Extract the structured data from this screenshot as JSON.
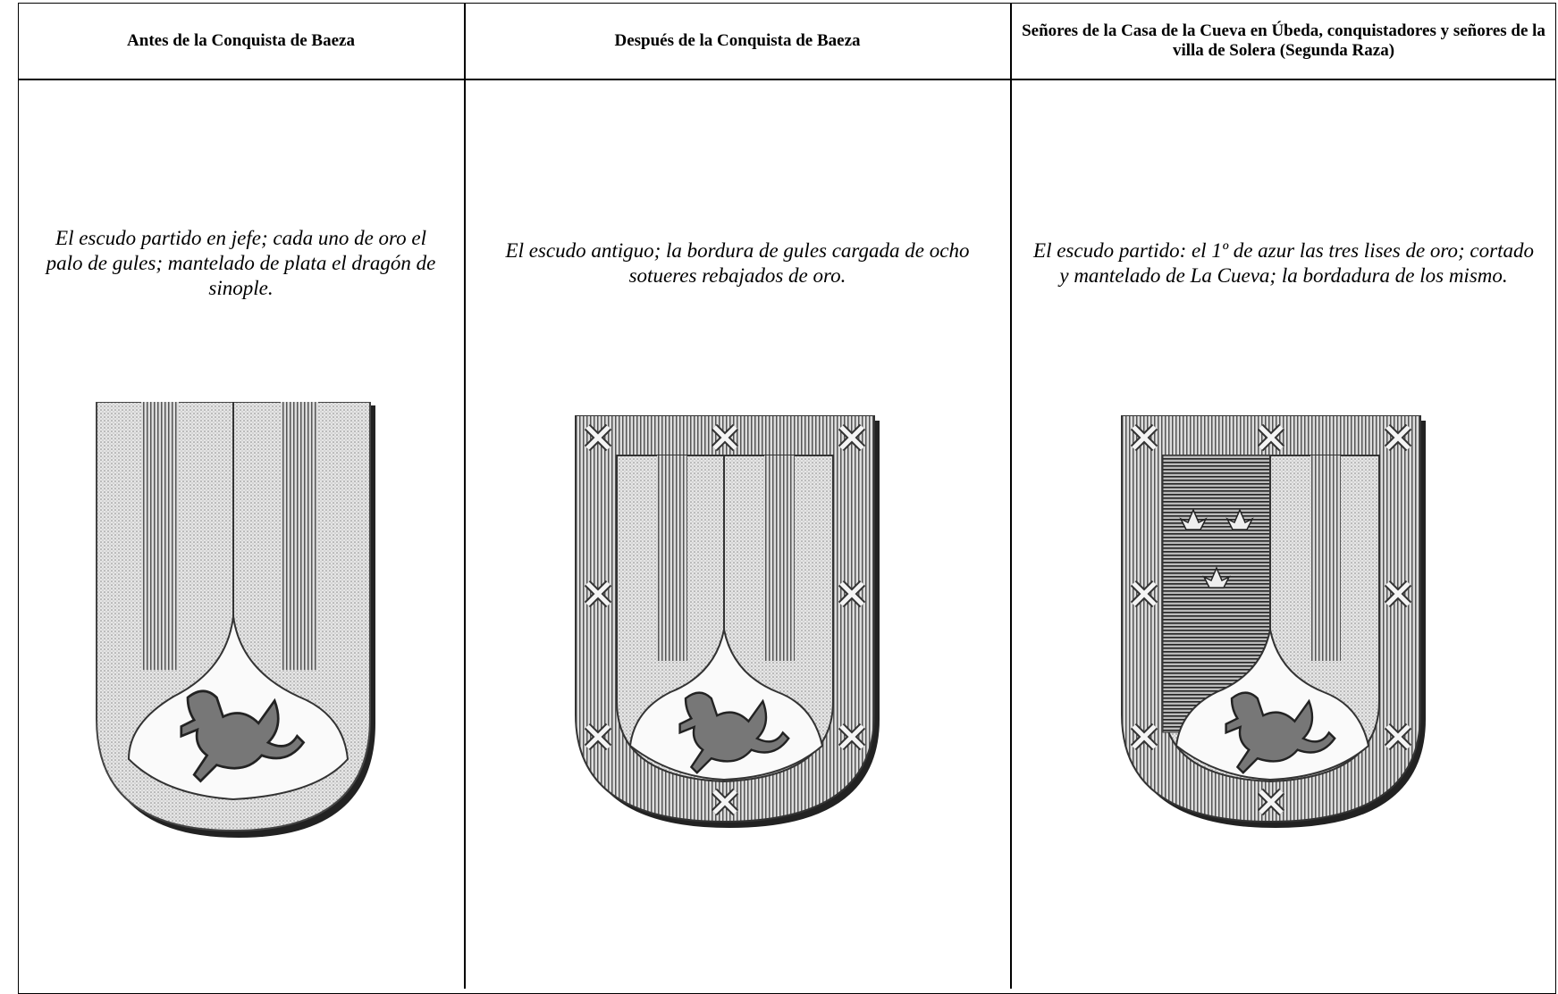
{
  "table": {
    "headers": [
      "Antes de la Conquista de Baeza",
      "Después de la Conquista de Baeza",
      "Señores de la Casa de la Cueva en Úbeda, conquistadores y señores de la villa de Solera (Segunda Raza)"
    ],
    "rows": [
      [
        "El escudo partido en jefe; cada uno de oro el palo de gules; mantelado de plata el dragón de sinople.",
        "El escudo antiguo; la bordura de gules cargada de ocho sotueres rebajados de oro.",
        "El escudo partido: el 1º de azur las tres lises de oro; cortado y mantelado de La Cueva; la bordadura de los mismo."
      ]
    ]
  }
}
